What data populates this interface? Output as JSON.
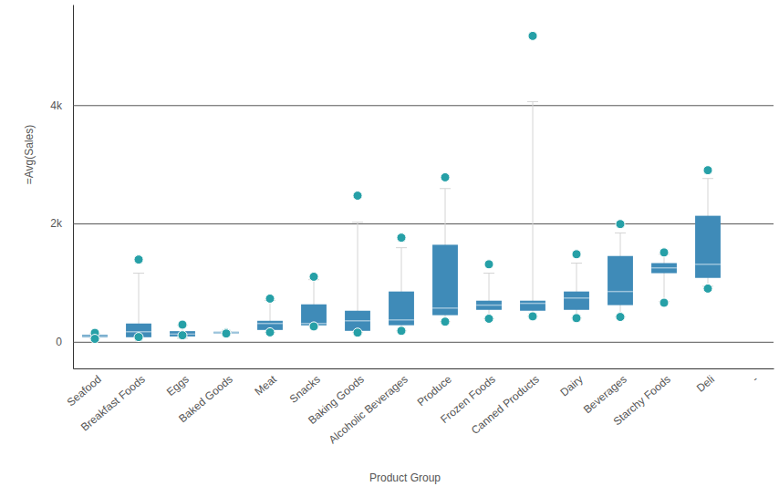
{
  "chart_data": {
    "type": "box",
    "x_label": "Product Group",
    "y_label": "=Avg(Sales)",
    "categories": [
      "Seafood",
      "Breakfast Foods",
      "Eggs",
      "Baked Goods",
      "Meat",
      "Snacks",
      "Baking Goods",
      "Alcoholic Beverages",
      "Produce",
      "Frozen Foods",
      "Canned Products",
      "Dairy",
      "Beverages",
      "Starchy Foods",
      "Deli",
      "-"
    ],
    "low": [
      50,
      80,
      60,
      140,
      160,
      260,
      155,
      185,
      340,
      390,
      430,
      400,
      420,
      680,
      940,
      null
    ],
    "q1": [
      80,
      77,
      90,
      145,
      200,
      278,
      185,
      280,
      450,
      540,
      525,
      540,
      620,
      1160,
      1080,
      null
    ],
    "median": [
      100,
      170,
      130,
      155,
      310,
      310,
      355,
      370,
      570,
      620,
      650,
      740,
      850,
      1250,
      1310,
      null
    ],
    "q3": [
      120,
      309,
      180,
      170,
      355,
      633,
      525,
      850,
      1640,
      695,
      695,
      850,
      1450,
      1330,
      2130,
      null
    ],
    "high": [
      140,
      1160,
      280,
      170,
      700,
      1050,
      2020,
      1590,
      2590,
      1160,
      4060,
      1330,
      1840,
      1480,
      2760,
      null
    ],
    "outliers": [
      [
        150,
        50
      ],
      [
        1390,
        80
      ],
      [
        290,
        110
      ],
      [
        155,
        140
      ],
      [
        730,
        160
      ],
      [
        1100,
        260
      ],
      [
        2470,
        155
      ],
      [
        1760,
        185
      ],
      [
        2780,
        340
      ],
      [
        1310,
        390
      ],
      [
        5170,
        430
      ],
      [
        1480,
        400
      ],
      [
        1990,
        420
      ],
      [
        1510,
        660
      ],
      [
        2900,
        900
      ],
      []
    ],
    "color": "#3f8bb8",
    "ylim": [
      -450,
      5700
    ],
    "yticks": [
      0,
      {
        "value": 2000,
        "label": "2k"
      },
      {
        "value": 4000,
        "label": "4k"
      }
    ],
    "grid": true
  }
}
